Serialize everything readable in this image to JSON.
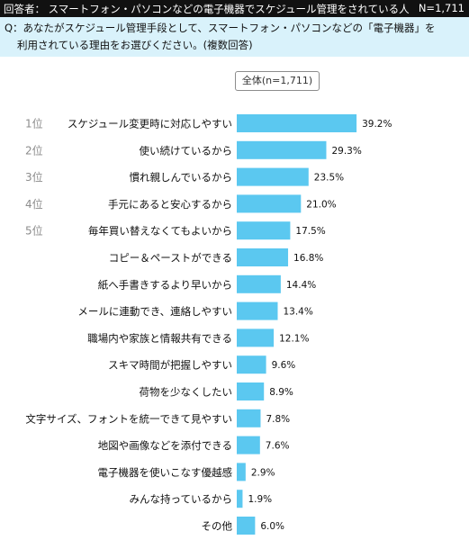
{
  "header": {
    "respondent": "回答者： スマートフォン・パソコンなどの電子機器でスケジュール管理をされている人",
    "count": "N=1,711"
  },
  "question": {
    "line1": "Q：あなたがスケジュール管理手段として、スマートフォン・パソコンなどの「電子機器」を",
    "line2": "利用されている理由をお選びください。(複数回答)"
  },
  "total_label": "全体(n=1,711)",
  "colors": {
    "bar": "#5bc8f0",
    "header_bg": "#111111",
    "question_bg": "#d9f2fb"
  },
  "chart_data": {
    "type": "bar",
    "orientation": "horizontal",
    "ranks": [
      "1位",
      "2位",
      "3位",
      "4位",
      "5位"
    ],
    "categories": [
      "スケジュール変更時に対応しやすい",
      "使い続けているから",
      "慣れ親しんでいるから",
      "手元にあると安心するから",
      "毎年買い替えなくてもよいから",
      "コピー＆ペーストができる",
      "紙へ手書きするより早いから",
      "メールに連動でき、連絡しやすい",
      "職場内や家族と情報共有できる",
      "スキマ時間が把握しやすい",
      "荷物を少なくしたい",
      "文字サイズ、フォントを統一できて見やすい",
      "地図や画像などを添付できる",
      "電子機器を使いこなす優越感",
      "みんな持っているから",
      "その他"
    ],
    "values": [
      39.2,
      29.3,
      23.5,
      21.0,
      17.5,
      16.8,
      14.4,
      13.4,
      12.1,
      9.6,
      8.9,
      7.8,
      7.6,
      2.9,
      1.9,
      6.0
    ],
    "value_labels": [
      "39.2%",
      "29.3%",
      "23.5%",
      "21.0%",
      "17.5%",
      "16.8%",
      "14.4%",
      "13.4%",
      "12.1%",
      "9.6%",
      "8.9%",
      "7.8%",
      "7.6%",
      "2.9%",
      "1.9%",
      "6.0%"
    ],
    "grid": false,
    "legend": "none"
  }
}
